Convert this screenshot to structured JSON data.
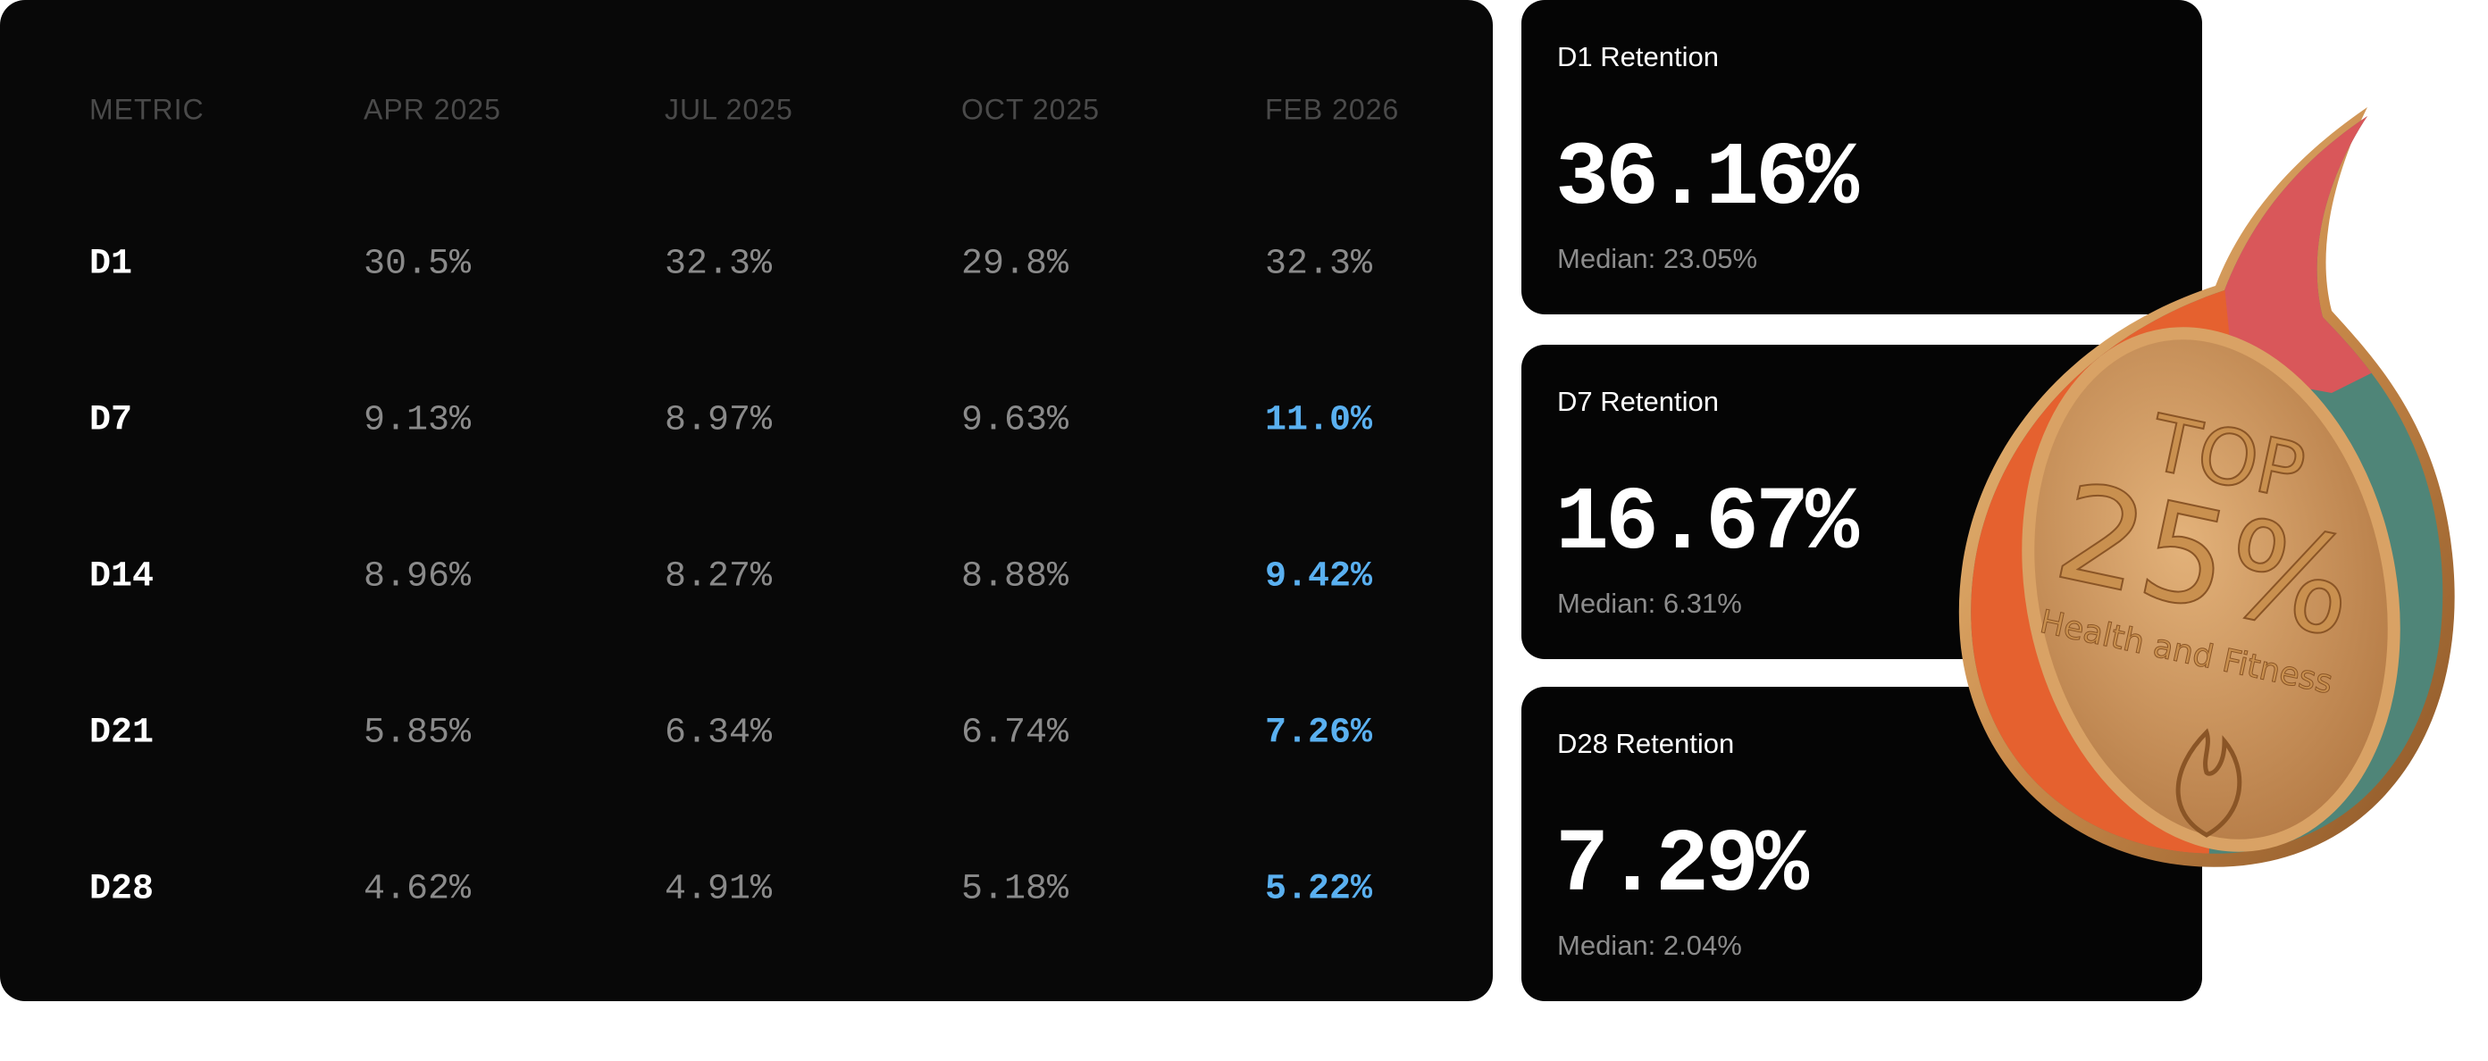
{
  "table": {
    "header": [
      "METRIC",
      "APR 2025",
      "JUL 2025",
      "OCT 2025",
      "FEB 2026"
    ],
    "rows": [
      {
        "cells": [
          "D1",
          "30.5%",
          "32.3%",
          "29.8%",
          "32.3%"
        ],
        "highlight": false
      },
      {
        "cells": [
          "D7",
          "9.13%",
          "8.97%",
          "9.63%",
          "11.0%"
        ],
        "highlight": true
      },
      {
        "cells": [
          "D14",
          "8.96%",
          "8.27%",
          "8.88%",
          "9.42%"
        ],
        "highlight": true
      },
      {
        "cells": [
          "D21",
          "5.85%",
          "6.34%",
          "6.74%",
          "7.26%"
        ],
        "highlight": true
      },
      {
        "cells": [
          "D28",
          "4.62%",
          "4.91%",
          "5.18%",
          "5.22%"
        ],
        "highlight": true
      }
    ]
  },
  "cards": [
    {
      "title": "D1 Retention",
      "value": "36.16%",
      "median": "Median: 23.05%"
    },
    {
      "title": "D7 Retention",
      "value": "16.67%",
      "median": "Median: 6.31%"
    },
    {
      "title": "D28 Retention",
      "value": "7.29%",
      "median": "Median: 2.04%"
    }
  ],
  "medal": {
    "line1": "TOP",
    "line2": "25%",
    "line3": "Health and Fitness"
  }
}
